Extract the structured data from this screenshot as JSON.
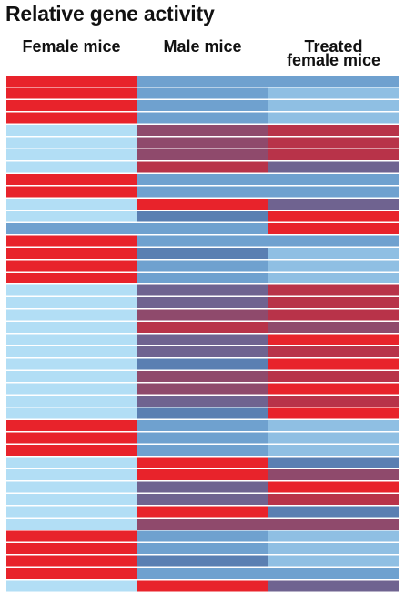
{
  "title": "Relative gene activity",
  "chart_data": {
    "type": "heatmap",
    "title": "Relative gene activity",
    "columns": [
      "Female mice",
      "Male mice",
      "Treated\nfemale mice"
    ],
    "colors": {
      "R": "#e8232b",
      "r": "#b83349",
      "p": "#8f4a6c",
      "m": "#6f6390",
      "s": "#5a7fb2",
      "b": "#6fa1cf",
      "c": "#8fbfe3",
      "l": "#b2def5"
    },
    "rows": [
      [
        "R",
        "b",
        "b"
      ],
      [
        "R",
        "b",
        "c"
      ],
      [
        "R",
        "b",
        "c"
      ],
      [
        "R",
        "b",
        "c"
      ],
      [
        "l",
        "p",
        "r"
      ],
      [
        "l",
        "p",
        "r"
      ],
      [
        "l",
        "p",
        "r"
      ],
      [
        "l",
        "r",
        "m"
      ],
      [
        "R",
        "b",
        "b"
      ],
      [
        "R",
        "b",
        "b"
      ],
      [
        "l",
        "R",
        "m"
      ],
      [
        "l",
        "s",
        "R"
      ],
      [
        "b",
        "b",
        "R"
      ],
      [
        "R",
        "b",
        "b"
      ],
      [
        "R",
        "s",
        "c"
      ],
      [
        "R",
        "b",
        "c"
      ],
      [
        "R",
        "b",
        "c"
      ],
      [
        "l",
        "m",
        "r"
      ],
      [
        "l",
        "m",
        "r"
      ],
      [
        "l",
        "p",
        "r"
      ],
      [
        "l",
        "r",
        "p"
      ],
      [
        "l",
        "m",
        "R"
      ],
      [
        "l",
        "m",
        "r"
      ],
      [
        "l",
        "s",
        "R"
      ],
      [
        "l",
        "p",
        "r"
      ],
      [
        "l",
        "p",
        "R"
      ],
      [
        "l",
        "m",
        "r"
      ],
      [
        "l",
        "s",
        "R"
      ],
      [
        "R",
        "b",
        "c"
      ],
      [
        "R",
        "b",
        "c"
      ],
      [
        "R",
        "b",
        "c"
      ],
      [
        "l",
        "R",
        "s"
      ],
      [
        "l",
        "R",
        "p"
      ],
      [
        "l",
        "m",
        "R"
      ],
      [
        "l",
        "m",
        "r"
      ],
      [
        "l",
        "R",
        "s"
      ],
      [
        "l",
        "p",
        "p"
      ],
      [
        "R",
        "b",
        "c"
      ],
      [
        "R",
        "b",
        "c"
      ],
      [
        "R",
        "s",
        "c"
      ],
      [
        "R",
        "b",
        "b"
      ],
      [
        "l",
        "R",
        "m"
      ]
    ]
  }
}
